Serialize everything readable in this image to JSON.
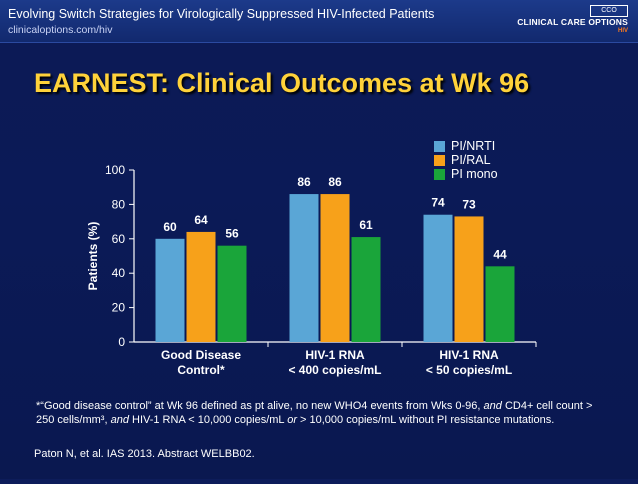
{
  "header": {
    "title": "Evolving Switch Strategies for Virologically Suppressed HIV-Infected Patients",
    "url": "clinicaloptions.com/hiv",
    "logo_text": "CLINICAL CARE OPTIONS",
    "logo_sub": "HIV",
    "logo_box": "CCO"
  },
  "slide": {
    "title": "EARNEST: Clinical Outcomes at Wk 96",
    "footnote_prefix": "*“Good disease control” at Wk 96 defined as pt alive, no new WHO4 events from Wks 0-96, ",
    "footnote_and1": "and",
    "footnote_mid1": " CD4+ cell count > 250 cells/mm³, ",
    "footnote_and2": "and",
    "footnote_mid2": " HIV-1 RNA < 10,000 copies/mL ",
    "footnote_or": "or",
    "footnote_end": " > 10,000 copies/mL without PI resistance mutations.",
    "citation": "Paton N, et al. IAS 2013. Abstract WELBB02."
  },
  "chart_data": {
    "type": "bar",
    "ylabel": "Patients (%)",
    "ylim": [
      0,
      100
    ],
    "yticks": [
      0,
      20,
      40,
      60,
      80,
      100
    ],
    "categories": [
      [
        "Good Disease",
        "Control*"
      ],
      [
        "HIV-1 RNA",
        "< 400 copies/mL"
      ],
      [
        "HIV-1 RNA",
        "< 50 copies/mL"
      ]
    ],
    "series": [
      {
        "name": "PI/NRTI",
        "color": "#5aa6d6",
        "values": [
          60,
          86,
          74
        ]
      },
      {
        "name": "PI/RAL",
        "color": "#f7a11a",
        "values": [
          64,
          86,
          73
        ]
      },
      {
        "name": "PI mono",
        "color": "#1aa53a",
        "values": [
          56,
          61,
          44
        ]
      }
    ],
    "legend_position": "top-right",
    "grid": false
  }
}
